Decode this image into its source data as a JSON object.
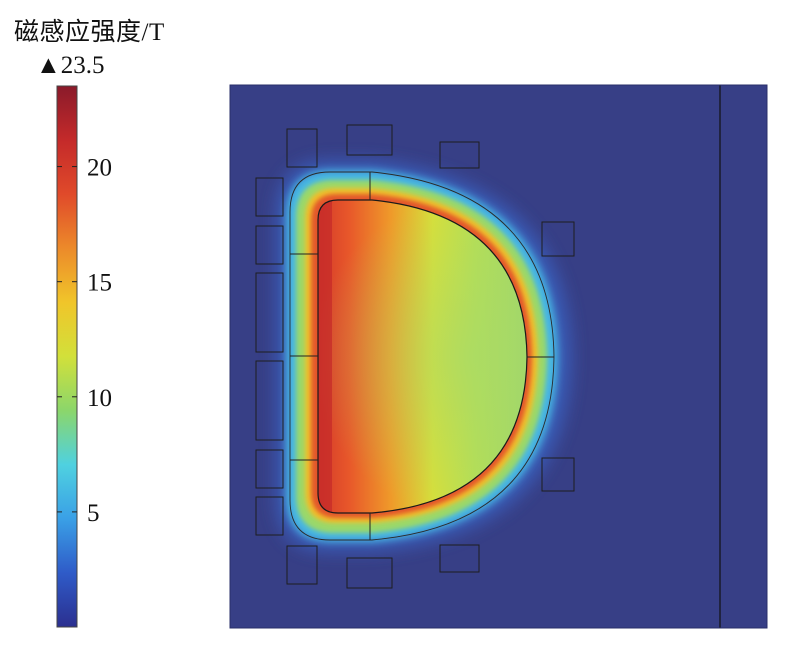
{
  "chart_data": {
    "type": "heatmap",
    "colorbar": {
      "title": "磁感应强度/T",
      "max_label": "▲23.5",
      "min": 0,
      "max": 23.5,
      "ticks": [
        {
          "value": 5,
          "label": "5"
        },
        {
          "value": 10,
          "label": "10"
        },
        {
          "value": 15,
          "label": "15"
        },
        {
          "value": 20,
          "label": "20"
        }
      ],
      "colors": [
        "#2b2f8f",
        "#2f5bc8",
        "#3aa0e6",
        "#4fd1e0",
        "#8bd66b",
        "#d2e03a",
        "#f0c52a",
        "#ec8a2a",
        "#e04a2a",
        "#c42a2a",
        "#8a1a2a"
      ]
    },
    "field": {
      "background_color": "#373f86",
      "peak_value": 23.5,
      "center_value": 11
    }
  }
}
